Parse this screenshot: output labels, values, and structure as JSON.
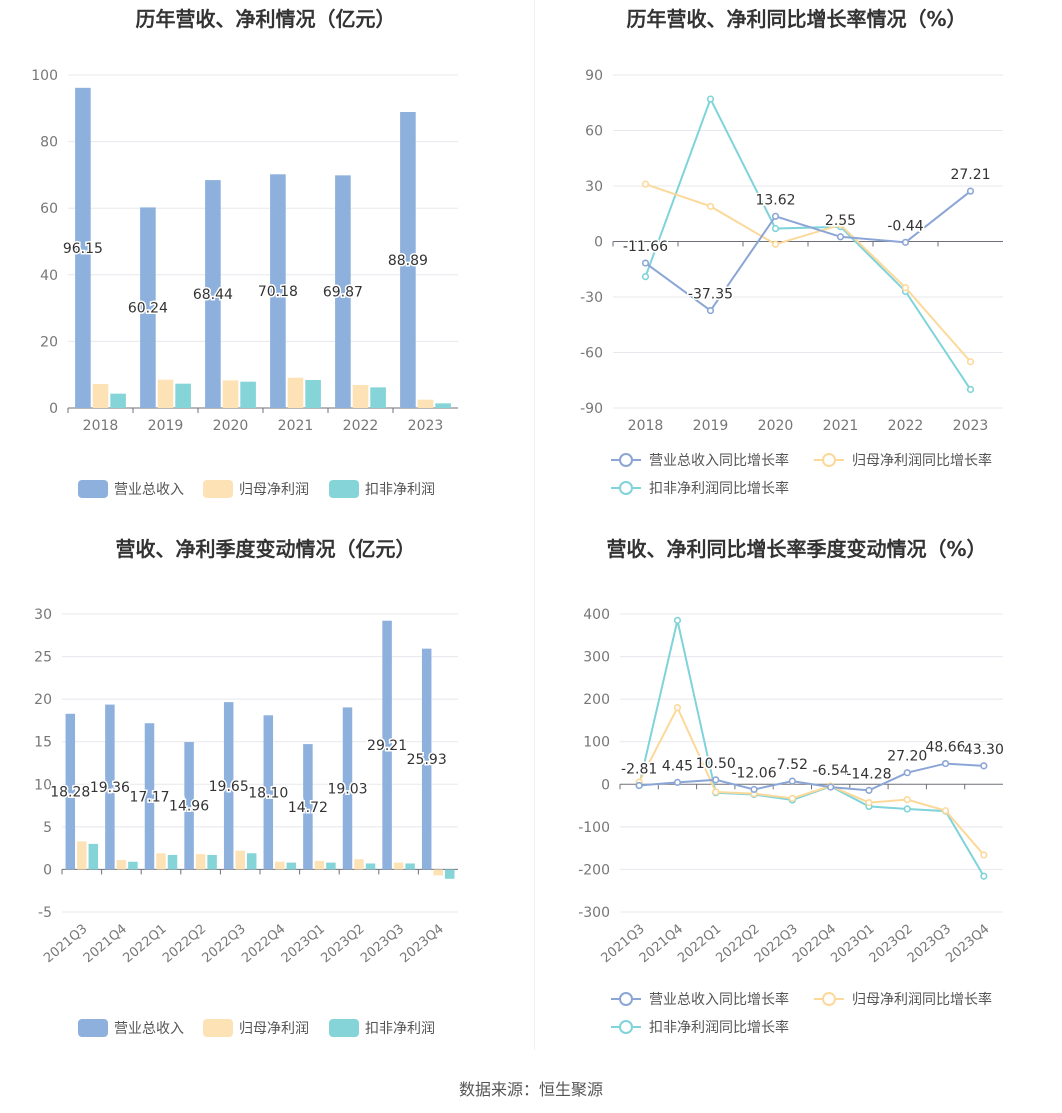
{
  "source": {
    "label": "数据来源：恒生聚源"
  },
  "chart_data": [
    {
      "type": "bar",
      "title": "历年营收、净利情况（亿元）",
      "categories": [
        "2018",
        "2019",
        "2020",
        "2021",
        "2022",
        "2023"
      ],
      "ylim": [
        0,
        100
      ],
      "yticks": [
        0,
        20,
        40,
        60,
        80,
        100
      ],
      "grid": true,
      "legend_position": "bottom",
      "colors": [
        "#8eb0dd",
        "#fde2b5",
        "#84d4d8"
      ],
      "series": [
        {
          "name": "营业总收入",
          "values": [
            96.15,
            60.24,
            68.44,
            70.18,
            69.87,
            88.89
          ],
          "labels": [
            "96.15",
            "60.24",
            "68.44",
            "70.18",
            "69.87",
            "88.89"
          ]
        },
        {
          "name": "归母净利润",
          "values": [
            7.2,
            8.5,
            8.3,
            9.1,
            6.9,
            2.5
          ]
        },
        {
          "name": "扣非净利润",
          "values": [
            4.3,
            7.3,
            7.9,
            8.4,
            6.2,
            1.4
          ]
        }
      ]
    },
    {
      "type": "line",
      "title": "历年营收、净利同比增长率情况（%）",
      "categories": [
        "2018",
        "2019",
        "2020",
        "2021",
        "2022",
        "2023"
      ],
      "ylim": [
        -90,
        90
      ],
      "yticks": [
        -90,
        -60,
        -30,
        0,
        30,
        60,
        90
      ],
      "grid": true,
      "legend_position": "bottom",
      "colors": [
        "#8ba6d6",
        "#fcd99a",
        "#7fd3da"
      ],
      "series": [
        {
          "name": "营业总收入同比增长率",
          "values": [
            -11.66,
            -37.35,
            13.62,
            2.55,
            -0.44,
            27.21
          ],
          "labels": [
            "-11.66",
            "-37.35",
            "13.62",
            "2.55",
            "-0.44",
            "27.21"
          ]
        },
        {
          "name": "归母净利润同比增长率",
          "values": [
            31,
            19,
            -1.5,
            9,
            -25,
            -65
          ]
        },
        {
          "name": "扣非净利润同比增长率",
          "values": [
            -19,
            77,
            7,
            8,
            -27,
            -80
          ]
        }
      ]
    },
    {
      "type": "bar",
      "title": "营收、净利季度变动情况（亿元）",
      "categories": [
        "2021Q3",
        "2021Q4",
        "2022Q1",
        "2022Q2",
        "2022Q3",
        "2022Q4",
        "2023Q1",
        "2023Q2",
        "2023Q3",
        "2023Q4"
      ],
      "ylim": [
        -5,
        30
      ],
      "yticks": [
        -5,
        0,
        5,
        10,
        15,
        20,
        25,
        30
      ],
      "grid": true,
      "legend_position": "bottom",
      "colors": [
        "#8eb0dd",
        "#fde2b5",
        "#84d4d8"
      ],
      "series": [
        {
          "name": "营业总收入",
          "values": [
            18.28,
            19.36,
            17.17,
            14.96,
            19.65,
            18.1,
            14.72,
            19.03,
            29.21,
            25.93
          ],
          "labels": [
            "18.28",
            "19.36",
            "17.17",
            "14.96",
            "19.65",
            "18.10",
            "14.72",
            "19.03",
            "29.21",
            "25.93"
          ]
        },
        {
          "name": "归母净利润",
          "values": [
            3.3,
            1.1,
            1.9,
            1.8,
            2.2,
            0.9,
            1.0,
            1.2,
            0.8,
            -0.7
          ]
        },
        {
          "name": "扣非净利润",
          "values": [
            3.0,
            0.9,
            1.7,
            1.7,
            1.9,
            0.8,
            0.8,
            0.7,
            0.7,
            -1.1
          ]
        }
      ]
    },
    {
      "type": "line",
      "title": "营收、净利同比增长率季度变动情况（%）",
      "categories": [
        "2021Q3",
        "2021Q4",
        "2022Q1",
        "2022Q2",
        "2022Q3",
        "2022Q4",
        "2023Q1",
        "2023Q2",
        "2023Q3",
        "2023Q4"
      ],
      "ylim": [
        -300,
        400
      ],
      "yticks": [
        -300,
        -200,
        -100,
        0,
        100,
        200,
        300,
        400
      ],
      "grid": true,
      "legend_position": "bottom",
      "colors": [
        "#8ba6d6",
        "#fcd99a",
        "#7fd3da"
      ],
      "series": [
        {
          "name": "营业总收入同比增长率",
          "values": [
            -2.81,
            4.45,
            10.5,
            -12.06,
            7.52,
            -6.54,
            -14.28,
            27.2,
            48.66,
            43.3
          ],
          "labels": [
            "-2.81",
            "4.45",
            "10.50",
            "-12.06",
            "7.52",
            "-6.54",
            "-14.28",
            "27.20",
            "48.66",
            "43.30"
          ]
        },
        {
          "name": "归母净利润同比增长率",
          "values": [
            5,
            180,
            -18,
            -22,
            -33,
            -4,
            -43,
            -36,
            -62,
            -166
          ]
        },
        {
          "name": "扣非净利润同比增长率",
          "values": [
            -3,
            385,
            -20,
            -24,
            -37,
            -5,
            -52,
            -58,
            -63,
            -216
          ]
        }
      ]
    }
  ]
}
